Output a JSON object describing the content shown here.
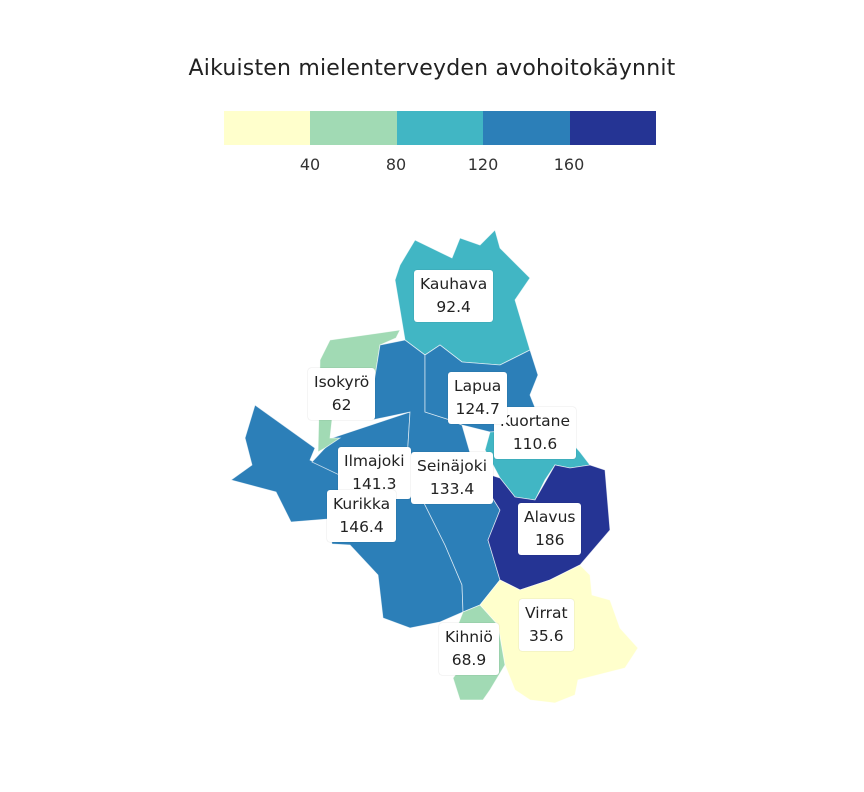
{
  "title": "Aikuisten mielenterveyden avohoitokäynnit",
  "legend": {
    "colors": [
      "#ffffcc",
      "#a1dab4",
      "#41b6c4",
      "#2c7fb8",
      "#253494"
    ],
    "ticks": [
      "40",
      "80",
      "120",
      "160"
    ]
  },
  "municipalities": [
    {
      "name": "Kauhava",
      "value": "92.4",
      "color": "#41b6c4"
    },
    {
      "name": "Isokyrö",
      "value": "62",
      "color": "#a1dab4"
    },
    {
      "name": "Lapua",
      "value": "124.7",
      "color": "#2c7fb8"
    },
    {
      "name": "Kuortane",
      "value": "110.6",
      "color": "#41b6c4"
    },
    {
      "name": "Ilmajoki",
      "value": "141.3",
      "color": "#2c7fb8"
    },
    {
      "name": "Seinäjoki",
      "value": "133.4",
      "color": "#2c7fb8"
    },
    {
      "name": "Kurikka",
      "value": "146.4",
      "color": "#2c7fb8"
    },
    {
      "name": "Alavus",
      "value": "186",
      "color": "#253494"
    },
    {
      "name": "Virrat",
      "value": "35.6",
      "color": "#ffffcc"
    },
    {
      "name": "Kihniö",
      "value": "68.9",
      "color": "#a1dab4"
    }
  ]
}
